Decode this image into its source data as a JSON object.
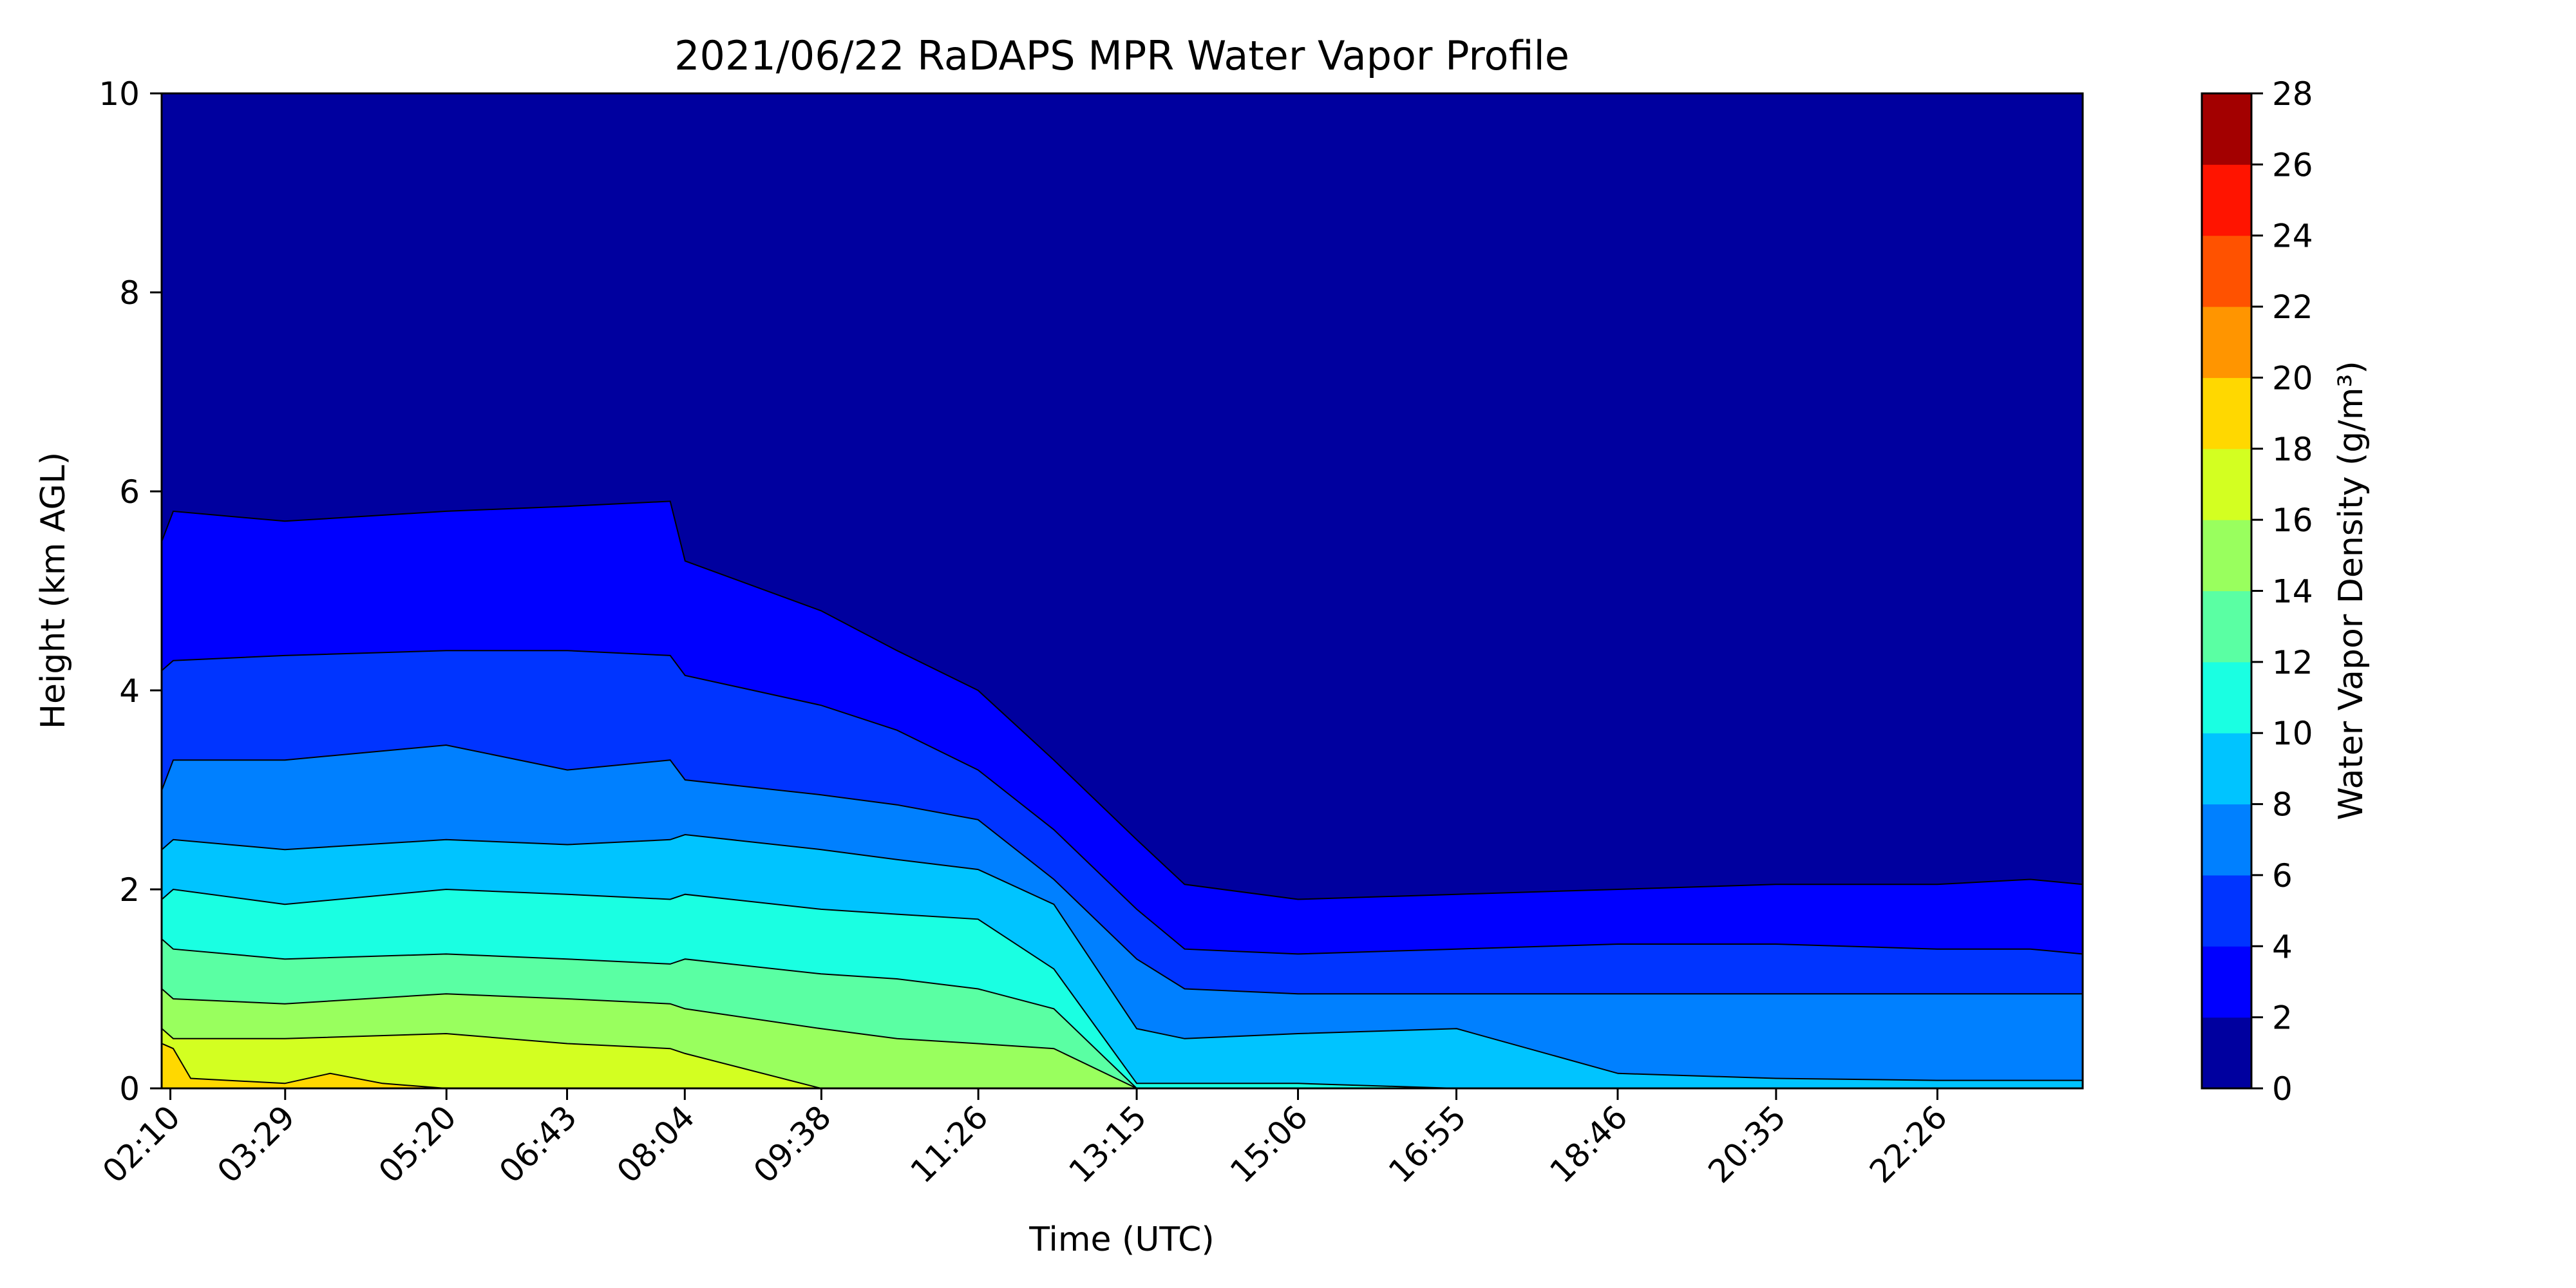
{
  "chart_data": {
    "type": "filled-contour",
    "title": "2021/06/22 RaDAPS MPR Water Vapor Profile",
    "xlabel": "Time (UTC)",
    "ylabel": "Height (km AGL)",
    "colorbar_label": "Water Vapor Density (g/m³)",
    "x_tick_labels": [
      "02:10",
      "03:29",
      "05:20",
      "06:43",
      "08:04",
      "09:38",
      "11:26",
      "13:15",
      "15:06",
      "16:55",
      "18:46",
      "20:35",
      "22:26"
    ],
    "x_tick_hours": [
      2.1667,
      3.4833,
      5.3333,
      6.7167,
      8.0667,
      9.6333,
      11.4333,
      13.25,
      15.1,
      16.9167,
      18.7667,
      20.5833,
      22.4333
    ],
    "xlim_hours": [
      2.0667,
      24.1
    ],
    "ylim": [
      0,
      10
    ],
    "y_ticks": [
      0,
      2,
      4,
      6,
      8,
      10
    ],
    "levels": [
      0,
      2,
      4,
      6,
      8,
      10,
      12,
      14,
      16,
      18,
      20,
      22,
      24,
      26,
      28
    ],
    "level_colors": [
      "#00009f",
      "#0000ff",
      "#0034ff",
      "#0080ff",
      "#00c4ff",
      "#1affe2",
      "#5affa3",
      "#99ff5e",
      "#d3ff21",
      "#ffd800",
      "#ff9500",
      "#ff5200",
      "#ff1400",
      "#a30000"
    ],
    "contour_boundaries_km": [
      {
        "level": 2,
        "times_hours": [
          2.07,
          2.2,
          3.48,
          5.33,
          6.72,
          7.9,
          8.07,
          9.63,
          10.5,
          11.43,
          12.3,
          13.25,
          13.8,
          15.1,
          16.92,
          18.77,
          20.58,
          22.43,
          23.5,
          24.1
        ],
        "heights_km": [
          5.5,
          5.8,
          5.7,
          5.8,
          5.85,
          5.9,
          5.3,
          4.8,
          4.4,
          4.0,
          3.3,
          2.5,
          2.05,
          1.9,
          1.95,
          2.0,
          2.05,
          2.05,
          2.1,
          2.05
        ]
      },
      {
        "level": 4,
        "times_hours": [
          2.07,
          2.2,
          3.48,
          5.33,
          6.72,
          7.9,
          8.07,
          9.63,
          10.5,
          11.43,
          12.3,
          13.25,
          13.8,
          15.1,
          16.92,
          18.77,
          20.58,
          22.43,
          23.5,
          24.1
        ],
        "heights_km": [
          4.2,
          4.3,
          4.35,
          4.4,
          4.4,
          4.35,
          4.15,
          3.85,
          3.6,
          3.2,
          2.6,
          1.8,
          1.4,
          1.35,
          1.4,
          1.45,
          1.45,
          1.4,
          1.4,
          1.35
        ]
      },
      {
        "level": 6,
        "times_hours": [
          2.07,
          2.2,
          3.48,
          5.33,
          6.72,
          7.9,
          8.07,
          9.63,
          10.5,
          11.43,
          12.3,
          13.25,
          13.8,
          15.1,
          16.92,
          18.77,
          20.58,
          22.43,
          23.5,
          24.1
        ],
        "heights_km": [
          3.0,
          3.3,
          3.3,
          3.45,
          3.2,
          3.3,
          3.1,
          2.95,
          2.85,
          2.7,
          2.1,
          1.3,
          1.0,
          0.95,
          0.95,
          0.95,
          0.95,
          0.95,
          0.95,
          0.95
        ]
      },
      {
        "level": 8,
        "times_hours": [
          2.07,
          2.2,
          3.48,
          5.33,
          6.72,
          7.9,
          8.07,
          9.63,
          10.5,
          11.43,
          12.3,
          13.25,
          13.8,
          15.1,
          16.92,
          18.77,
          20.58,
          22.43,
          23.5,
          24.1
        ],
        "heights_km": [
          2.4,
          2.5,
          2.4,
          2.5,
          2.45,
          2.5,
          2.55,
          2.4,
          2.3,
          2.2,
          1.85,
          0.6,
          0.5,
          0.55,
          0.6,
          0.15,
          0.1,
          0.08,
          0.08,
          0.08
        ]
      },
      {
        "level": 10,
        "times_hours": [
          2.07,
          2.2,
          3.48,
          5.33,
          6.72,
          7.9,
          8.07,
          9.63,
          10.5,
          11.43,
          12.3,
          13.25,
          13.8,
          15.1,
          16.92,
          18.77,
          20.58,
          22.43,
          23.5,
          24.1
        ],
        "heights_km": [
          1.9,
          2.0,
          1.85,
          2.0,
          1.95,
          1.9,
          1.95,
          1.8,
          1.75,
          1.7,
          1.2,
          0.05,
          0.05,
          0.05,
          0.0,
          0.0,
          0.0,
          0.0,
          0.0,
          0.0
        ]
      },
      {
        "level": 12,
        "times_hours": [
          2.07,
          2.2,
          3.48,
          5.33,
          6.72,
          7.9,
          8.07,
          9.63,
          10.5,
          11.43,
          12.3,
          13.25,
          13.8,
          15.1,
          16.92,
          18.77,
          20.58,
          22.43,
          23.5,
          24.1
        ],
        "heights_km": [
          1.5,
          1.4,
          1.3,
          1.35,
          1.3,
          1.25,
          1.3,
          1.15,
          1.1,
          1.0,
          0.8,
          0.0,
          0.0,
          0.0,
          0.0,
          0.0,
          0.0,
          0.0,
          0.0,
          0.0
        ]
      },
      {
        "level": 14,
        "times_hours": [
          2.07,
          2.2,
          3.48,
          5.33,
          6.72,
          7.9,
          8.07,
          9.63,
          10.5,
          11.43,
          12.3,
          13.25,
          13.8,
          15.1,
          16.92,
          18.77,
          20.58,
          22.43,
          23.5,
          24.1
        ],
        "heights_km": [
          1.0,
          0.9,
          0.85,
          0.95,
          0.9,
          0.85,
          0.8,
          0.6,
          0.5,
          0.45,
          0.4,
          0.0,
          0.0,
          0.0,
          0.0,
          0.0,
          0.0,
          0.0,
          0.0,
          0.0
        ]
      },
      {
        "level": 16,
        "times_hours": [
          2.07,
          2.2,
          3.48,
          5.33,
          6.72,
          7.9,
          8.07,
          9.63,
          10.5,
          11.43,
          12.3,
          13.25,
          13.8,
          15.1,
          16.92,
          18.77,
          20.58,
          22.43,
          23.5,
          24.1
        ],
        "heights_km": [
          0.6,
          0.5,
          0.5,
          0.55,
          0.45,
          0.4,
          0.35,
          0.0,
          0.0,
          0.0,
          0.0,
          0.0,
          0.0,
          0.0,
          0.0,
          0.0,
          0.0,
          0.0,
          0.0,
          0.0
        ]
      },
      {
        "level": 18,
        "times_hours": [
          2.07,
          2.2,
          2.4,
          3.48,
          4.0,
          4.6,
          5.33,
          6.72,
          7.9,
          8.07,
          9.63,
          24.1
        ],
        "heights_km": [
          0.45,
          0.4,
          0.1,
          0.05,
          0.15,
          0.05,
          0.0,
          0.0,
          0.0,
          0.0,
          0.0,
          0.0
        ]
      }
    ]
  }
}
